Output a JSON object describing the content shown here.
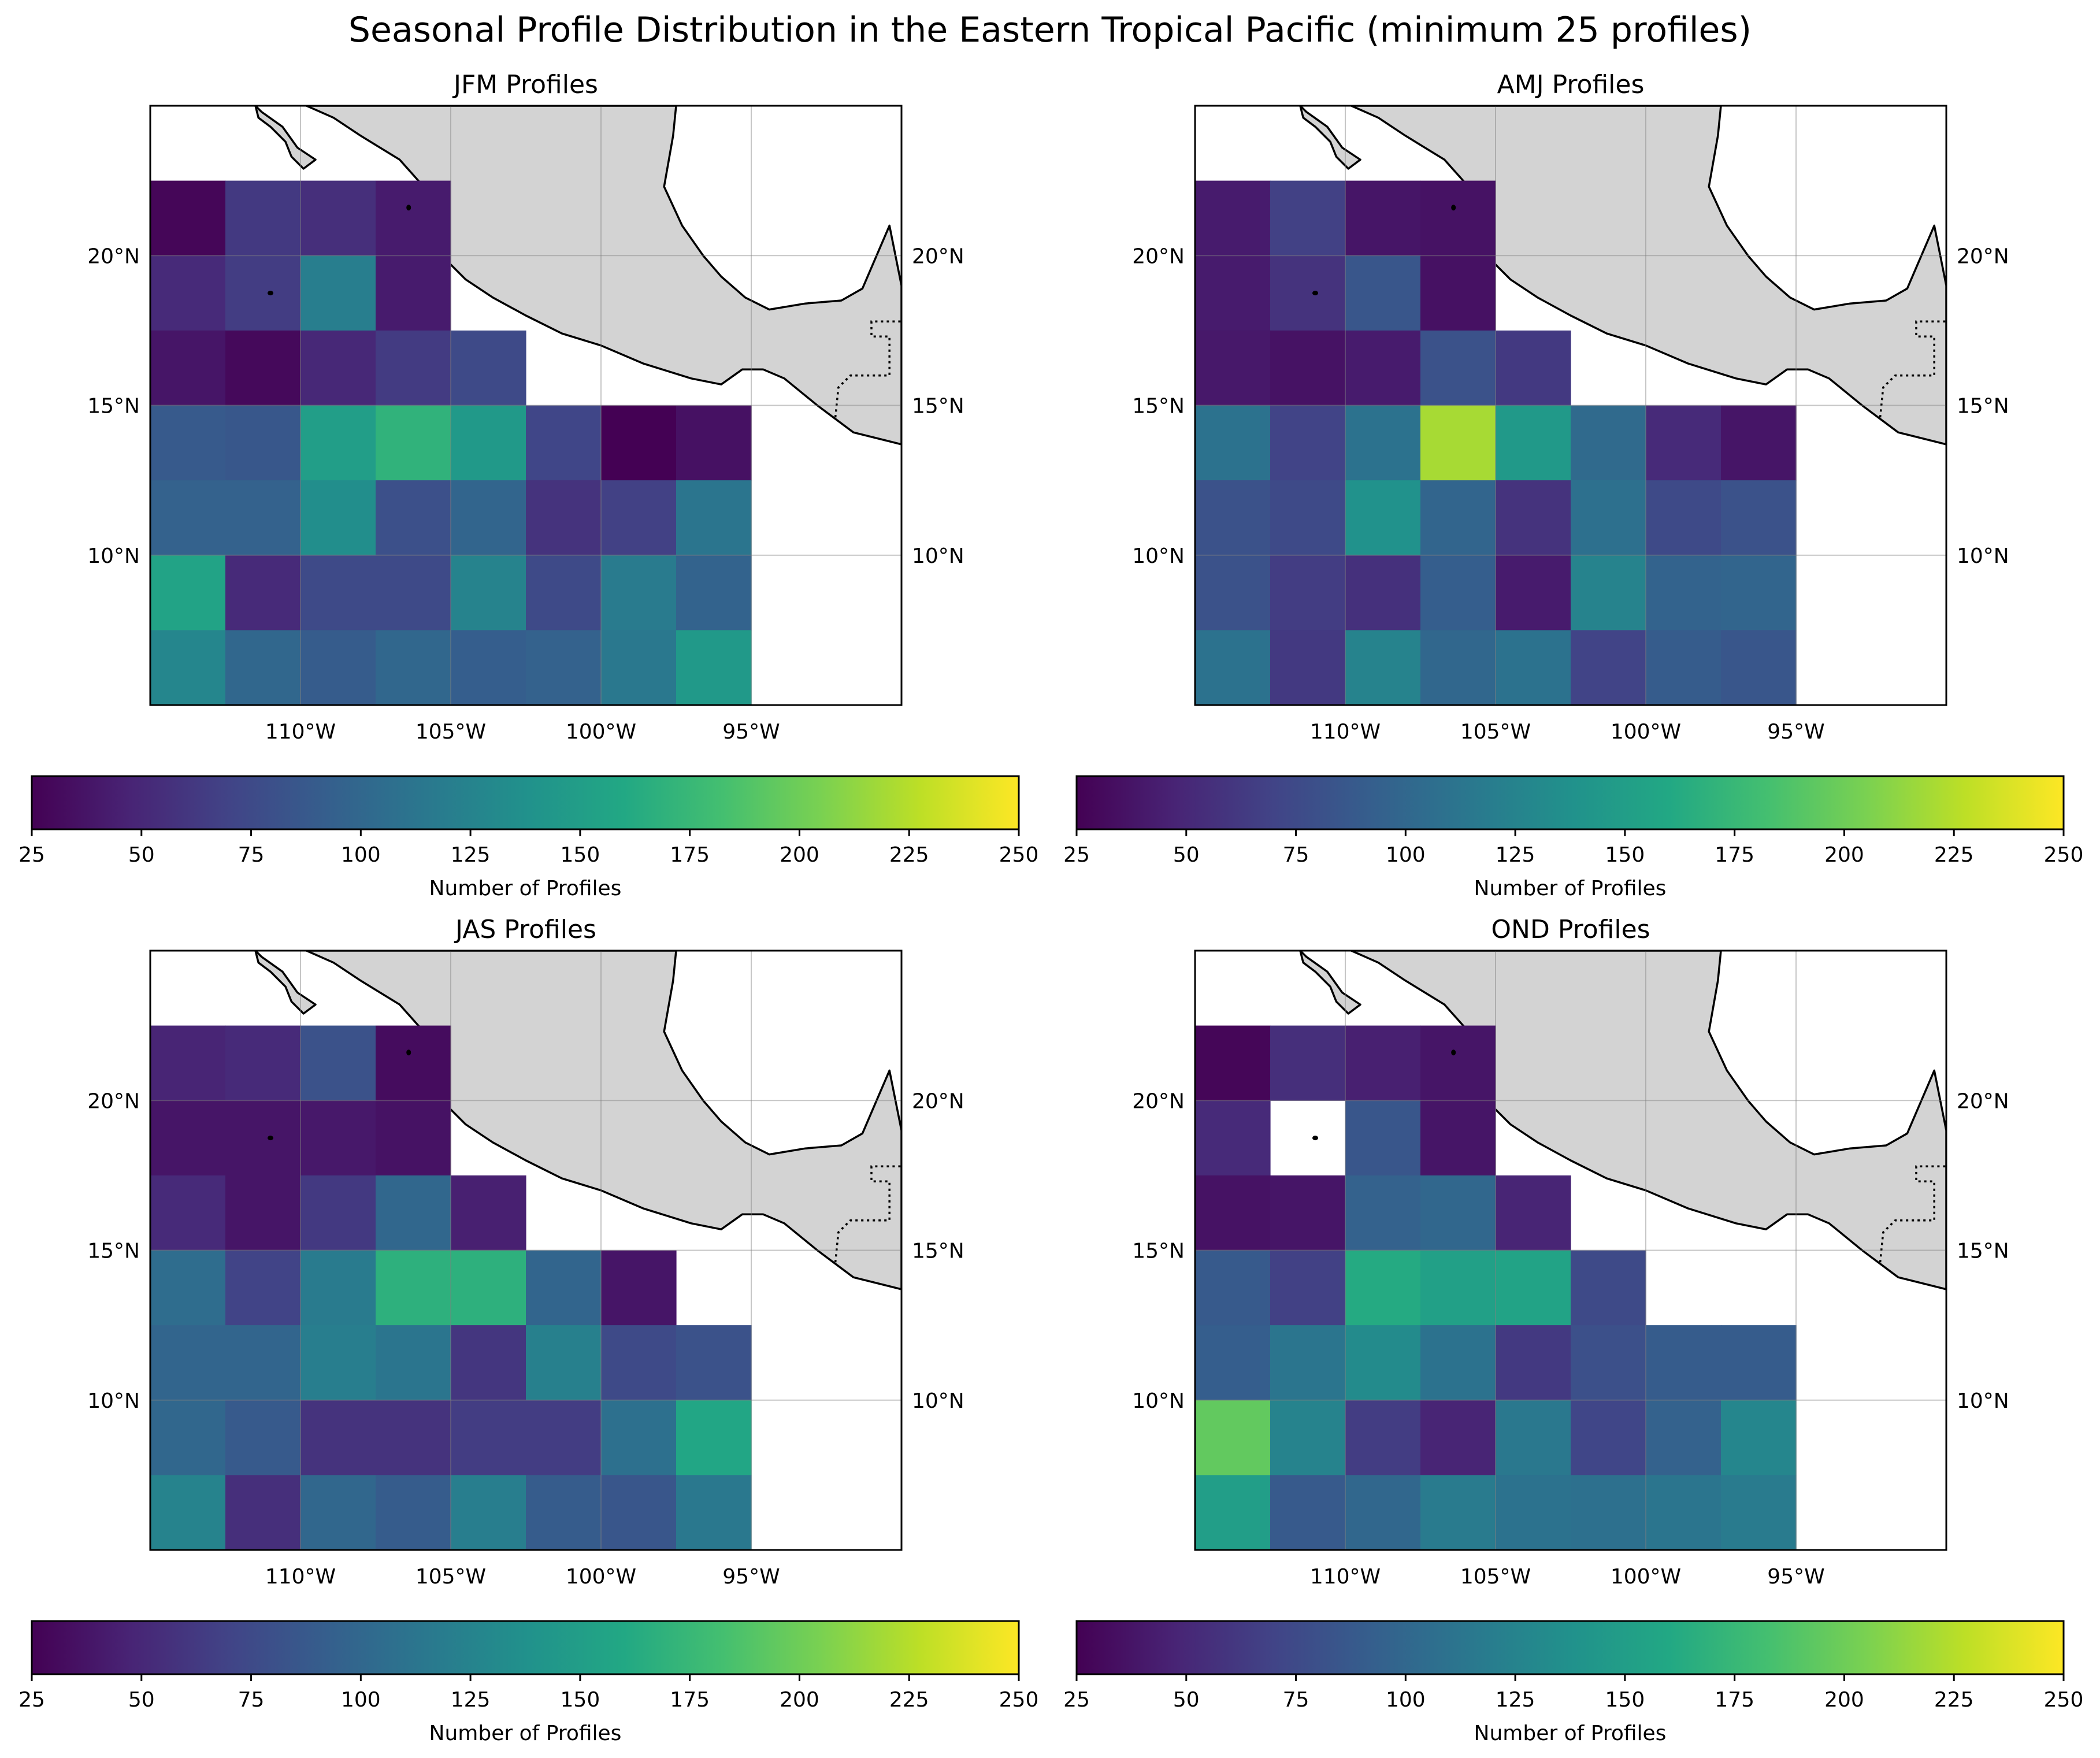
{
  "figure": {
    "title": "Seasonal Profile Distribution in the Eastern Tropical Pacific (minimum 25 profiles)"
  },
  "x_ticks": [
    "110°W",
    "105°W",
    "100°W",
    "95°W"
  ],
  "y_ticks": [
    "10°N",
    "15°N",
    "20°N"
  ],
  "colorbar": {
    "label": "Number of Profiles",
    "ticks": [
      "25",
      "50",
      "75",
      "100",
      "125",
      "150",
      "175",
      "200",
      "225",
      "250"
    ],
    "vmin": 25,
    "vmax": 250,
    "colormap": "viridis"
  },
  "land_color": "#d3d3d3",
  "chart_data": [
    {
      "type": "heatmap",
      "title": "JFM Profiles",
      "lon_edges": [
        -115,
        -112.5,
        -110,
        -107.5,
        -105,
        -102.5,
        -100,
        -97.5,
        -95
      ],
      "lat_edges": [
        22.5,
        20,
        17.5,
        15,
        12.5,
        10,
        7.5,
        5
      ],
      "values": [
        [
          28,
          62,
          55,
          42,
          null,
          null,
          null,
          null
        ],
        [
          52,
          65,
          120,
          42,
          null,
          null,
          null,
          null
        ],
        [
          38,
          30,
          50,
          64,
          75,
          null,
          null,
          null
        ],
        [
          88,
          86,
          150,
          170,
          145,
          72,
          25,
          35
        ],
        [
          95,
          95,
          135,
          80,
          98,
          58,
          68,
          112
        ],
        [
          155,
          52,
          75,
          75,
          125,
          75,
          118,
          96
        ],
        [
          128,
          100,
          90,
          100,
          92,
          95,
          115,
          145
        ]
      ]
    },
    {
      "type": "heatmap",
      "title": "AMJ Profiles",
      "lon_edges": [
        -115,
        -112.5,
        -110,
        -107.5,
        -105,
        -102.5,
        -100,
        -97.5,
        -95
      ],
      "lat_edges": [
        22.5,
        20,
        17.5,
        15,
        12.5,
        10,
        7.5,
        5
      ],
      "values": [
        [
          42,
          68,
          38,
          36,
          null,
          null,
          null,
          null
        ],
        [
          42,
          58,
          85,
          35,
          null,
          null,
          null,
          null
        ],
        [
          40,
          36,
          42,
          82,
          62,
          null,
          null,
          null
        ],
        [
          110,
          70,
          110,
          220,
          145,
          102,
          52,
          38
        ],
        [
          82,
          75,
          138,
          98,
          58,
          108,
          75,
          82
        ],
        [
          82,
          65,
          56,
          92,
          42,
          125,
          96,
          98
        ],
        [
          110,
          62,
          125,
          100,
          110,
          70,
          90,
          85
        ]
      ]
    },
    {
      "type": "heatmap",
      "title": "JAS Profiles",
      "lon_edges": [
        -115,
        -112.5,
        -110,
        -107.5,
        -105,
        -102.5,
        -100,
        -97.5,
        -95
      ],
      "lat_edges": [
        22.5,
        20,
        17.5,
        15,
        12.5,
        10,
        7.5,
        5
      ],
      "values": [
        [
          48,
          52,
          82,
          32,
          null,
          null,
          null,
          null
        ],
        [
          38,
          38,
          40,
          36,
          null,
          null,
          null,
          null
        ],
        [
          52,
          38,
          62,
          100,
          45,
          null,
          null,
          null
        ],
        [
          105,
          70,
          118,
          168,
          168,
          98,
          38,
          null
        ],
        [
          98,
          98,
          120,
          112,
          60,
          122,
          75,
          82
        ],
        [
          100,
          88,
          58,
          58,
          65,
          65,
          108,
          158
        ],
        [
          125,
          55,
          100,
          90,
          120,
          90,
          85,
          115
        ]
      ]
    },
    {
      "type": "heatmap",
      "title": "OND Profiles",
      "lon_edges": [
        -115,
        -112.5,
        -110,
        -107.5,
        -105,
        -102.5,
        -100,
        -97.5,
        -95
      ],
      "lat_edges": [
        22.5,
        20,
        17.5,
        15,
        12.5,
        10,
        7.5,
        5
      ],
      "values": [
        [
          28,
          55,
          45,
          38,
          null,
          null,
          null,
          null
        ],
        [
          52,
          null,
          85,
          38,
          null,
          null,
          null,
          null
        ],
        [
          36,
          38,
          95,
          100,
          48,
          null,
          null,
          null
        ],
        [
          88,
          68,
          162,
          152,
          155,
          75,
          null,
          null
        ],
        [
          92,
          112,
          132,
          110,
          62,
          80,
          90,
          90
        ],
        [
          195,
          125,
          65,
          48,
          115,
          72,
          95,
          128
        ],
        [
          150,
          88,
          100,
          118,
          110,
          108,
          112,
          118
        ]
      ]
    }
  ]
}
